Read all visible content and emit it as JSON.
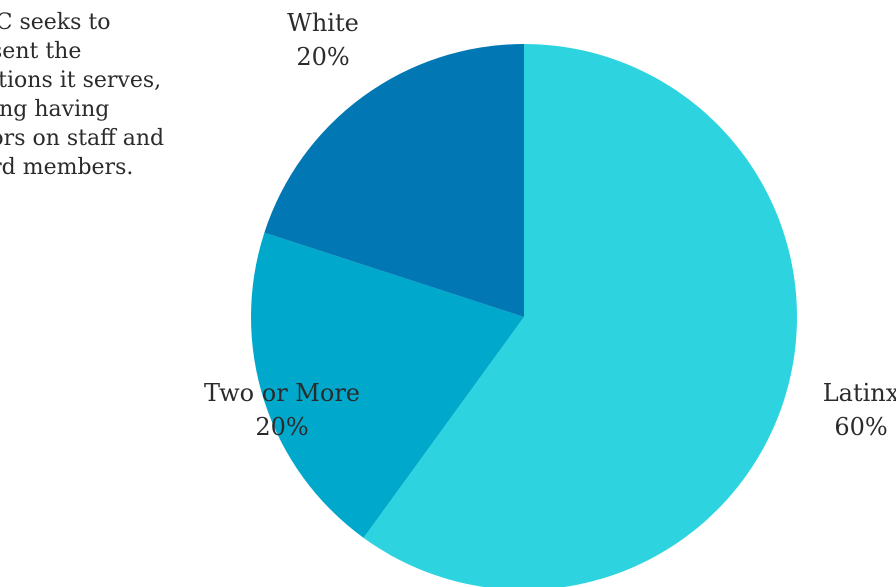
{
  "intro_lines": [
    "JJC seeks to",
    "esent the",
    "lations it serves,",
    "ding having",
    "vors on staff and",
    "ard members."
  ],
  "chart_data": {
    "type": "pie",
    "title": "",
    "slices": [
      {
        "label": "Latinx",
        "value": 60,
        "display": "60%",
        "color": "#2dd4e0"
      },
      {
        "label": "Two or More",
        "value": 20,
        "display": "20%",
        "color": "#00a8cc"
      },
      {
        "label": "White",
        "value": 20,
        "display": "20%",
        "color": "#0178b4"
      }
    ]
  }
}
